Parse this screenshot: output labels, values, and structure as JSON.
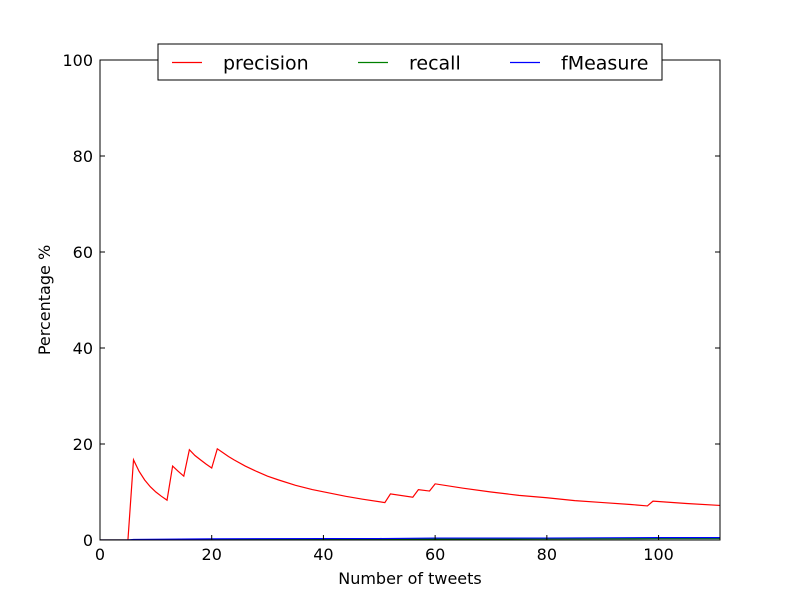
{
  "chart_data": {
    "type": "line",
    "title": "",
    "xlabel": "Number of tweets",
    "ylabel": "Percentage %",
    "xlim": [
      0,
      111
    ],
    "ylim": [
      0,
      100
    ],
    "x_ticks": [
      0,
      20,
      40,
      60,
      80,
      100
    ],
    "y_ticks": [
      0,
      20,
      40,
      60,
      80,
      100
    ],
    "grid": false,
    "legend": {
      "placement": "top-center",
      "columns": 3
    },
    "series": [
      {
        "name": "precision",
        "color": "#ff0000",
        "points": [
          [
            0,
            0
          ],
          [
            5,
            0
          ],
          [
            6,
            16.7
          ],
          [
            7,
            14.3
          ],
          [
            8,
            12.5
          ],
          [
            9,
            11.1
          ],
          [
            10,
            10.0
          ],
          [
            11,
            9.1
          ],
          [
            12,
            8.3
          ],
          [
            13,
            15.4
          ],
          [
            14,
            14.3
          ],
          [
            15,
            13.3
          ],
          [
            16,
            18.8
          ],
          [
            17,
            17.6
          ],
          [
            18,
            16.7
          ],
          [
            19,
            15.8
          ],
          [
            20,
            15.0
          ],
          [
            21,
            19.0
          ],
          [
            22,
            18.2
          ],
          [
            23,
            17.4
          ],
          [
            24,
            16.7
          ],
          [
            26,
            15.4
          ],
          [
            28,
            14.3
          ],
          [
            30,
            13.3
          ],
          [
            32,
            12.5
          ],
          [
            35,
            11.4
          ],
          [
            38,
            10.5
          ],
          [
            41,
            9.8
          ],
          [
            44,
            9.1
          ],
          [
            47,
            8.5
          ],
          [
            51,
            7.8
          ],
          [
            52,
            9.6
          ],
          [
            56,
            8.9
          ],
          [
            57,
            10.5
          ],
          [
            59,
            10.2
          ],
          [
            60,
            11.7
          ],
          [
            65,
            10.8
          ],
          [
            70,
            10.0
          ],
          [
            75,
            9.3
          ],
          [
            80,
            8.8
          ],
          [
            85,
            8.2
          ],
          [
            90,
            7.8
          ],
          [
            95,
            7.4
          ],
          [
            98,
            7.1
          ],
          [
            99,
            8.1
          ],
          [
            105,
            7.6
          ],
          [
            111,
            7.2
          ]
        ]
      },
      {
        "name": "recall",
        "color": "#008000",
        "points": [
          [
            0,
            0
          ],
          [
            5,
            0
          ],
          [
            20,
            0.1
          ],
          [
            40,
            0.15
          ],
          [
            60,
            0.2
          ],
          [
            80,
            0.25
          ],
          [
            100,
            0.3
          ],
          [
            111,
            0.3
          ]
        ]
      },
      {
        "name": "fMeasure",
        "color": "#0000ff",
        "points": [
          [
            0,
            0
          ],
          [
            5,
            0
          ],
          [
            6,
            0.1
          ],
          [
            20,
            0.25
          ],
          [
            40,
            0.3
          ],
          [
            50,
            0.3
          ],
          [
            60,
            0.4
          ],
          [
            80,
            0.4
          ],
          [
            100,
            0.5
          ],
          [
            111,
            0.5
          ]
        ]
      }
    ]
  }
}
